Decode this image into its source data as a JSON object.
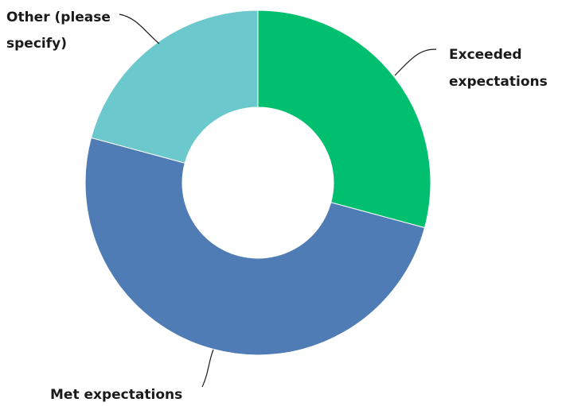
{
  "chart_data": {
    "type": "pie",
    "style": "donut",
    "legend": "none",
    "slices": [
      {
        "label": "Exceeded expectations",
        "lines": [
          "Exceeded",
          "expectations"
        ],
        "value": 29.2,
        "color": "#00bf6f"
      },
      {
        "label": "Met expectations",
        "lines": [
          "Met expectations"
        ],
        "value": 50.0,
        "color": "#507cb6"
      },
      {
        "label": "Other (please specify)",
        "lines": [
          "Other (please",
          "specify)"
        ],
        "value": 20.8,
        "color": "#6bc8cd"
      }
    ]
  }
}
